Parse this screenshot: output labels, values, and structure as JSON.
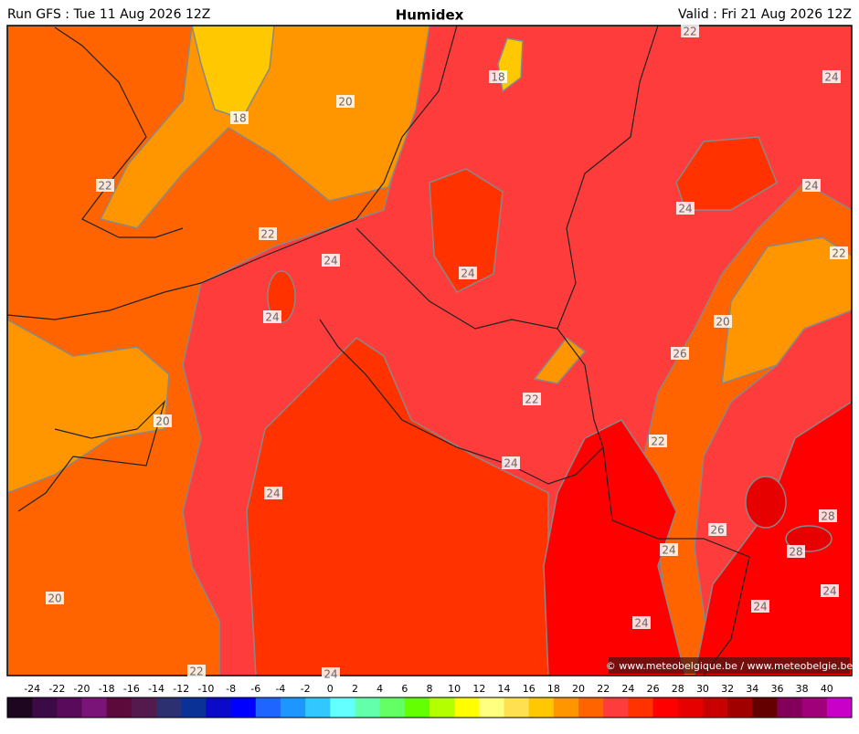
{
  "header": {
    "run": "Run GFS : Tue 11 Aug 2026 12Z",
    "title": "Humidex",
    "valid": "Valid : Fri 21 Aug 2026 12Z"
  },
  "map": {
    "contour_labels": [
      "22",
      "24",
      "18",
      "20",
      "18",
      "22",
      "24",
      "24",
      "22",
      "22",
      "24",
      "24",
      "24",
      "20",
      "26",
      "22",
      "20",
      "22",
      "24",
      "24",
      "28",
      "26",
      "24",
      "28",
      "24",
      "20",
      "24",
      "24",
      "22",
      "24"
    ],
    "credit": "© www.meteobelgique.be / www.meteobelgie.be"
  },
  "colorbar": {
    "ticks": [
      -24,
      -22,
      -20,
      -18,
      -16,
      -14,
      -12,
      -10,
      -8,
      -6,
      -4,
      -2,
      0,
      2,
      4,
      6,
      8,
      10,
      12,
      14,
      16,
      18,
      20,
      22,
      24,
      26,
      28,
      30,
      32,
      34,
      36,
      38,
      40
    ],
    "colors": [
      "#1e0520",
      "#3c0a46",
      "#5a0a5a",
      "#7a1478",
      "#5c0a3c",
      "#551a4d",
      "#2d3070",
      "#0a3296",
      "#0a0ac8",
      "#0000ff",
      "#1e64ff",
      "#1e96ff",
      "#32c8ff",
      "#64ffff",
      "#64ffaa",
      "#64ff64",
      "#64ff00",
      "#b4ff00",
      "#ffff00",
      "#ffff80",
      "#ffe050",
      "#ffc800",
      "#ff9600",
      "#ff6400",
      "#ff3c3c",
      "#ff3200",
      "#ff0000",
      "#e60000",
      "#c80000",
      "#a00000",
      "#640000",
      "#82005a",
      "#a0007a",
      "#c800c8"
    ]
  }
}
